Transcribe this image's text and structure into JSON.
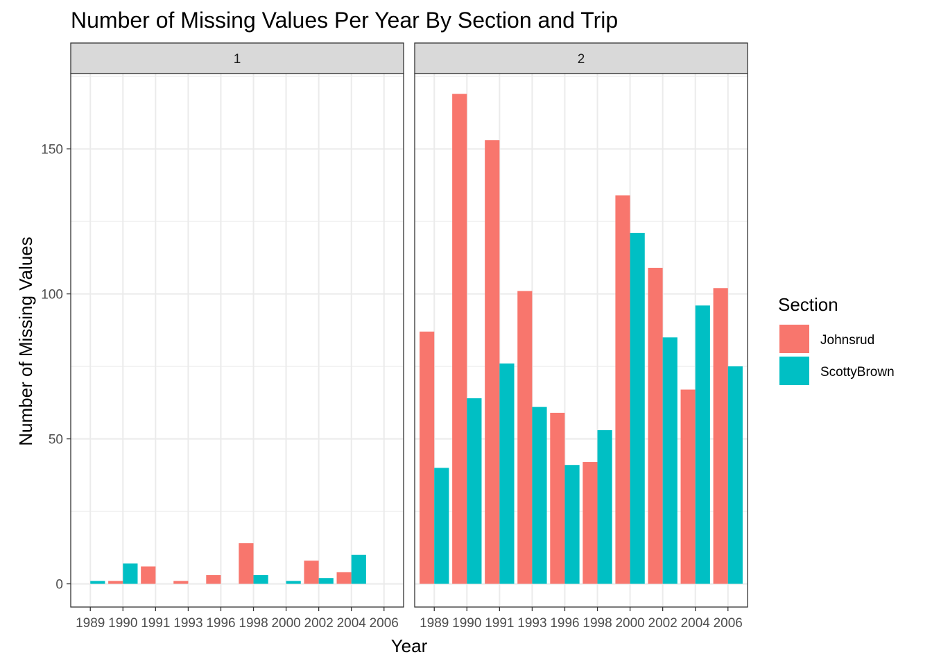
{
  "chart_data": {
    "type": "bar",
    "title": "Number of Missing Values Per Year By Section and Trip",
    "xlabel": "Year",
    "ylabel": "Number of Missing Values",
    "ylim": [
      -8,
      176
    ],
    "yticks": [
      0,
      50,
      100,
      150
    ],
    "categories": [
      "1989",
      "1990",
      "1991",
      "1993",
      "1996",
      "1998",
      "2000",
      "2002",
      "2004",
      "2006"
    ],
    "legend": {
      "title": "Section",
      "position": "right",
      "entries": [
        {
          "name": "Johnsrud",
          "color": "#F8766D"
        },
        {
          "name": "ScottyBrown",
          "color": "#00BFC4"
        }
      ]
    },
    "facets": [
      {
        "label": "1",
        "series": [
          {
            "name": "Johnsrud",
            "values": [
              null,
              1,
              6,
              1,
              3,
              14,
              null,
              8,
              4,
              null
            ]
          },
          {
            "name": "ScottyBrown",
            "values": [
              1,
              7,
              null,
              null,
              null,
              3,
              1,
              2,
              10,
              null
            ]
          }
        ]
      },
      {
        "label": "2",
        "series": [
          {
            "name": "Johnsrud",
            "values": [
              87,
              169,
              153,
              101,
              59,
              42,
              134,
              109,
              67,
              102
            ]
          },
          {
            "name": "ScottyBrown",
            "values": [
              40,
              64,
              76,
              61,
              41,
              53,
              121,
              85,
              96,
              75
            ]
          }
        ]
      }
    ],
    "grid": true
  }
}
